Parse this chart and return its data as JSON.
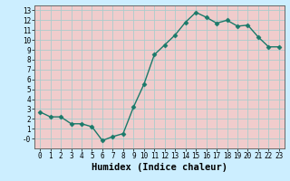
{
  "x": [
    0,
    1,
    2,
    3,
    4,
    5,
    6,
    7,
    8,
    9,
    10,
    11,
    12,
    13,
    14,
    15,
    16,
    17,
    18,
    19,
    20,
    21,
    22,
    23
  ],
  "y": [
    2.7,
    2.2,
    2.2,
    1.5,
    1.5,
    1.2,
    -0.2,
    0.2,
    0.5,
    3.2,
    5.5,
    8.5,
    9.5,
    10.5,
    11.8,
    12.8,
    12.3,
    11.7,
    12.0,
    11.4,
    11.5,
    10.3,
    9.3,
    9.3
  ],
  "line_color": "#1a7a6a",
  "marker": "D",
  "markersize": 2.5,
  "linewidth": 1.0,
  "xlabel": "Humidex (Indice chaleur)",
  "bg_color": "#cceeff",
  "grid_color": "#aacccc",
  "axes_bg": "#f0cccc",
  "xlim": [
    -0.5,
    23.5
  ],
  "ylim": [
    -1,
    13.5
  ],
  "yticks": [
    0,
    1,
    2,
    3,
    4,
    5,
    6,
    7,
    8,
    9,
    10,
    11,
    12,
    13
  ],
  "xticks": [
    0,
    1,
    2,
    3,
    4,
    5,
    6,
    7,
    8,
    9,
    10,
    11,
    12,
    13,
    14,
    15,
    16,
    17,
    18,
    19,
    20,
    21,
    22,
    23
  ],
  "tick_fontsize": 5.5,
  "xlabel_fontsize": 7.5
}
